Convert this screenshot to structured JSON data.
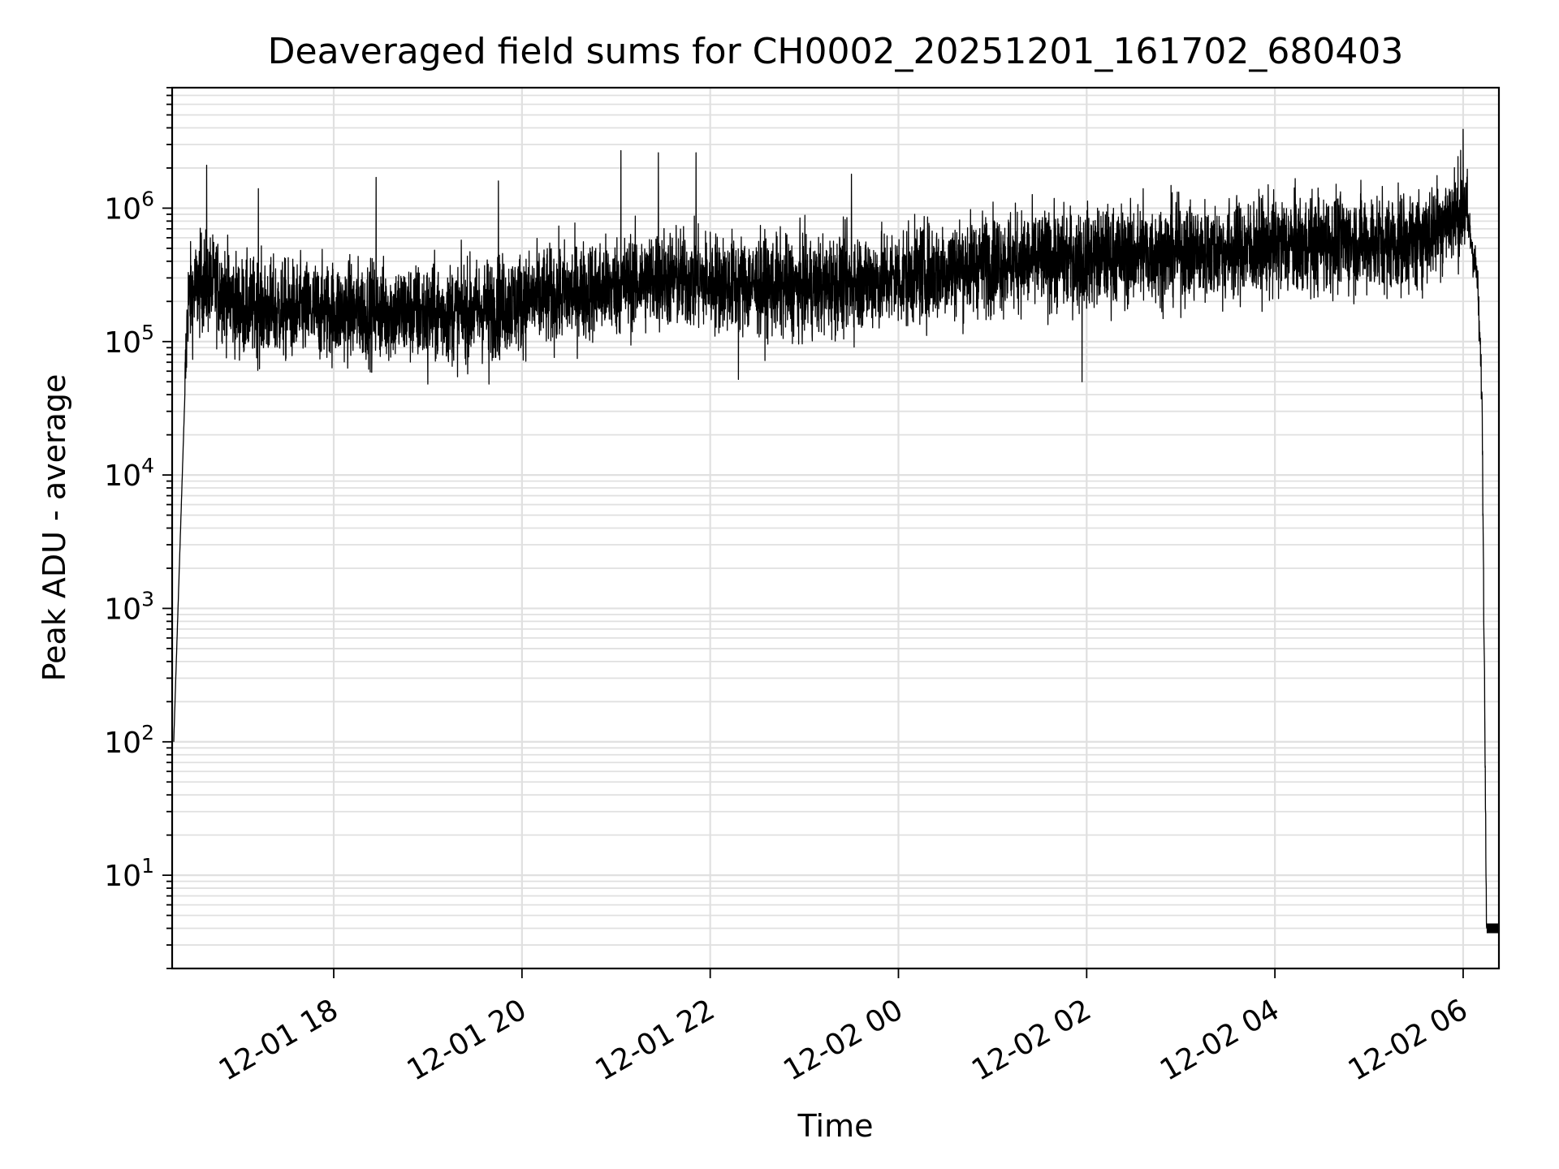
{
  "chart_data": {
    "type": "line",
    "title": "Deaveraged field sums for CH0002_20251201_161702_680403",
    "xlabel": "Time",
    "ylabel": "Peak ADU - average",
    "yscale": "log",
    "ylim": [
      2,
      8000000
    ],
    "xlim_hours": [
      16.283,
      30.38
    ],
    "grid": true,
    "line_color": "#000000",
    "grid_color": "#e0e0e0",
    "x_ticks": [
      {
        "label": "12-01 18",
        "hours": 18
      },
      {
        "label": "12-01 20",
        "hours": 20
      },
      {
        "label": "12-01 22",
        "hours": 22
      },
      {
        "label": "12-02 00",
        "hours": 24
      },
      {
        "label": "12-02 02",
        "hours": 26
      },
      {
        "label": "12-02 04",
        "hours": 28
      },
      {
        "label": "12-02 06",
        "hours": 30
      }
    ],
    "y_ticks": [
      {
        "base": "10",
        "exp": "1",
        "value": 10
      },
      {
        "base": "10",
        "exp": "2",
        "value": 100
      },
      {
        "base": "10",
        "exp": "3",
        "value": 1000
      },
      {
        "base": "10",
        "exp": "4",
        "value": 10000
      },
      {
        "base": "10",
        "exp": "5",
        "value": 100000
      },
      {
        "base": "10",
        "exp": "6",
        "value": 1000000
      }
    ],
    "series": [
      {
        "name": "deaveraged field sum",
        "note": "noisy signal (~8000 samples); described as a trend envelope of the median level in ADU",
        "trend_hours": [
          16.3,
          16.45,
          16.6,
          16.8,
          17.0,
          17.5,
          18.0,
          18.5,
          19.0,
          19.5,
          20.0,
          20.5,
          21.0,
          21.5,
          22.0,
          22.5,
          23.0,
          23.5,
          24.0,
          24.5,
          25.0,
          25.5,
          26.0,
          26.5,
          27.0,
          27.5,
          28.0,
          28.5,
          29.0,
          29.5,
          30.0,
          30.05,
          30.15,
          30.2,
          30.25,
          30.38
        ],
        "trend_median": [
          100,
          200000,
          280000,
          250000,
          180000,
          170000,
          170000,
          170000,
          160000,
          170000,
          200000,
          230000,
          260000,
          300000,
          280000,
          260000,
          250000,
          280000,
          300000,
          350000,
          400000,
          400000,
          420000,
          450000,
          470000,
          480000,
          520000,
          550000,
          560000,
          560000,
          1000000,
          800000,
          300000,
          40000,
          4,
          4
        ],
        "spike_peaks": [
          {
            "hours": 16.65,
            "value": 2100000
          },
          {
            "hours": 17.2,
            "value": 1400000
          },
          {
            "hours": 18.45,
            "value": 1700000
          },
          {
            "hours": 19.75,
            "value": 1600000
          },
          {
            "hours": 21.05,
            "value": 2700000
          },
          {
            "hours": 21.45,
            "value": 2600000
          },
          {
            "hours": 21.85,
            "value": 2600000
          },
          {
            "hours": 23.5,
            "value": 1800000
          },
          {
            "hours": 26.6,
            "value": 1400000
          },
          {
            "hours": 30.0,
            "value": 3900000
          }
        ],
        "dips": [
          {
            "hours": 19.0,
            "value": 48000
          },
          {
            "hours": 19.65,
            "value": 48000
          },
          {
            "hours": 22.3,
            "value": 52000
          },
          {
            "hours": 25.95,
            "value": 50000
          }
        ]
      }
    ]
  }
}
